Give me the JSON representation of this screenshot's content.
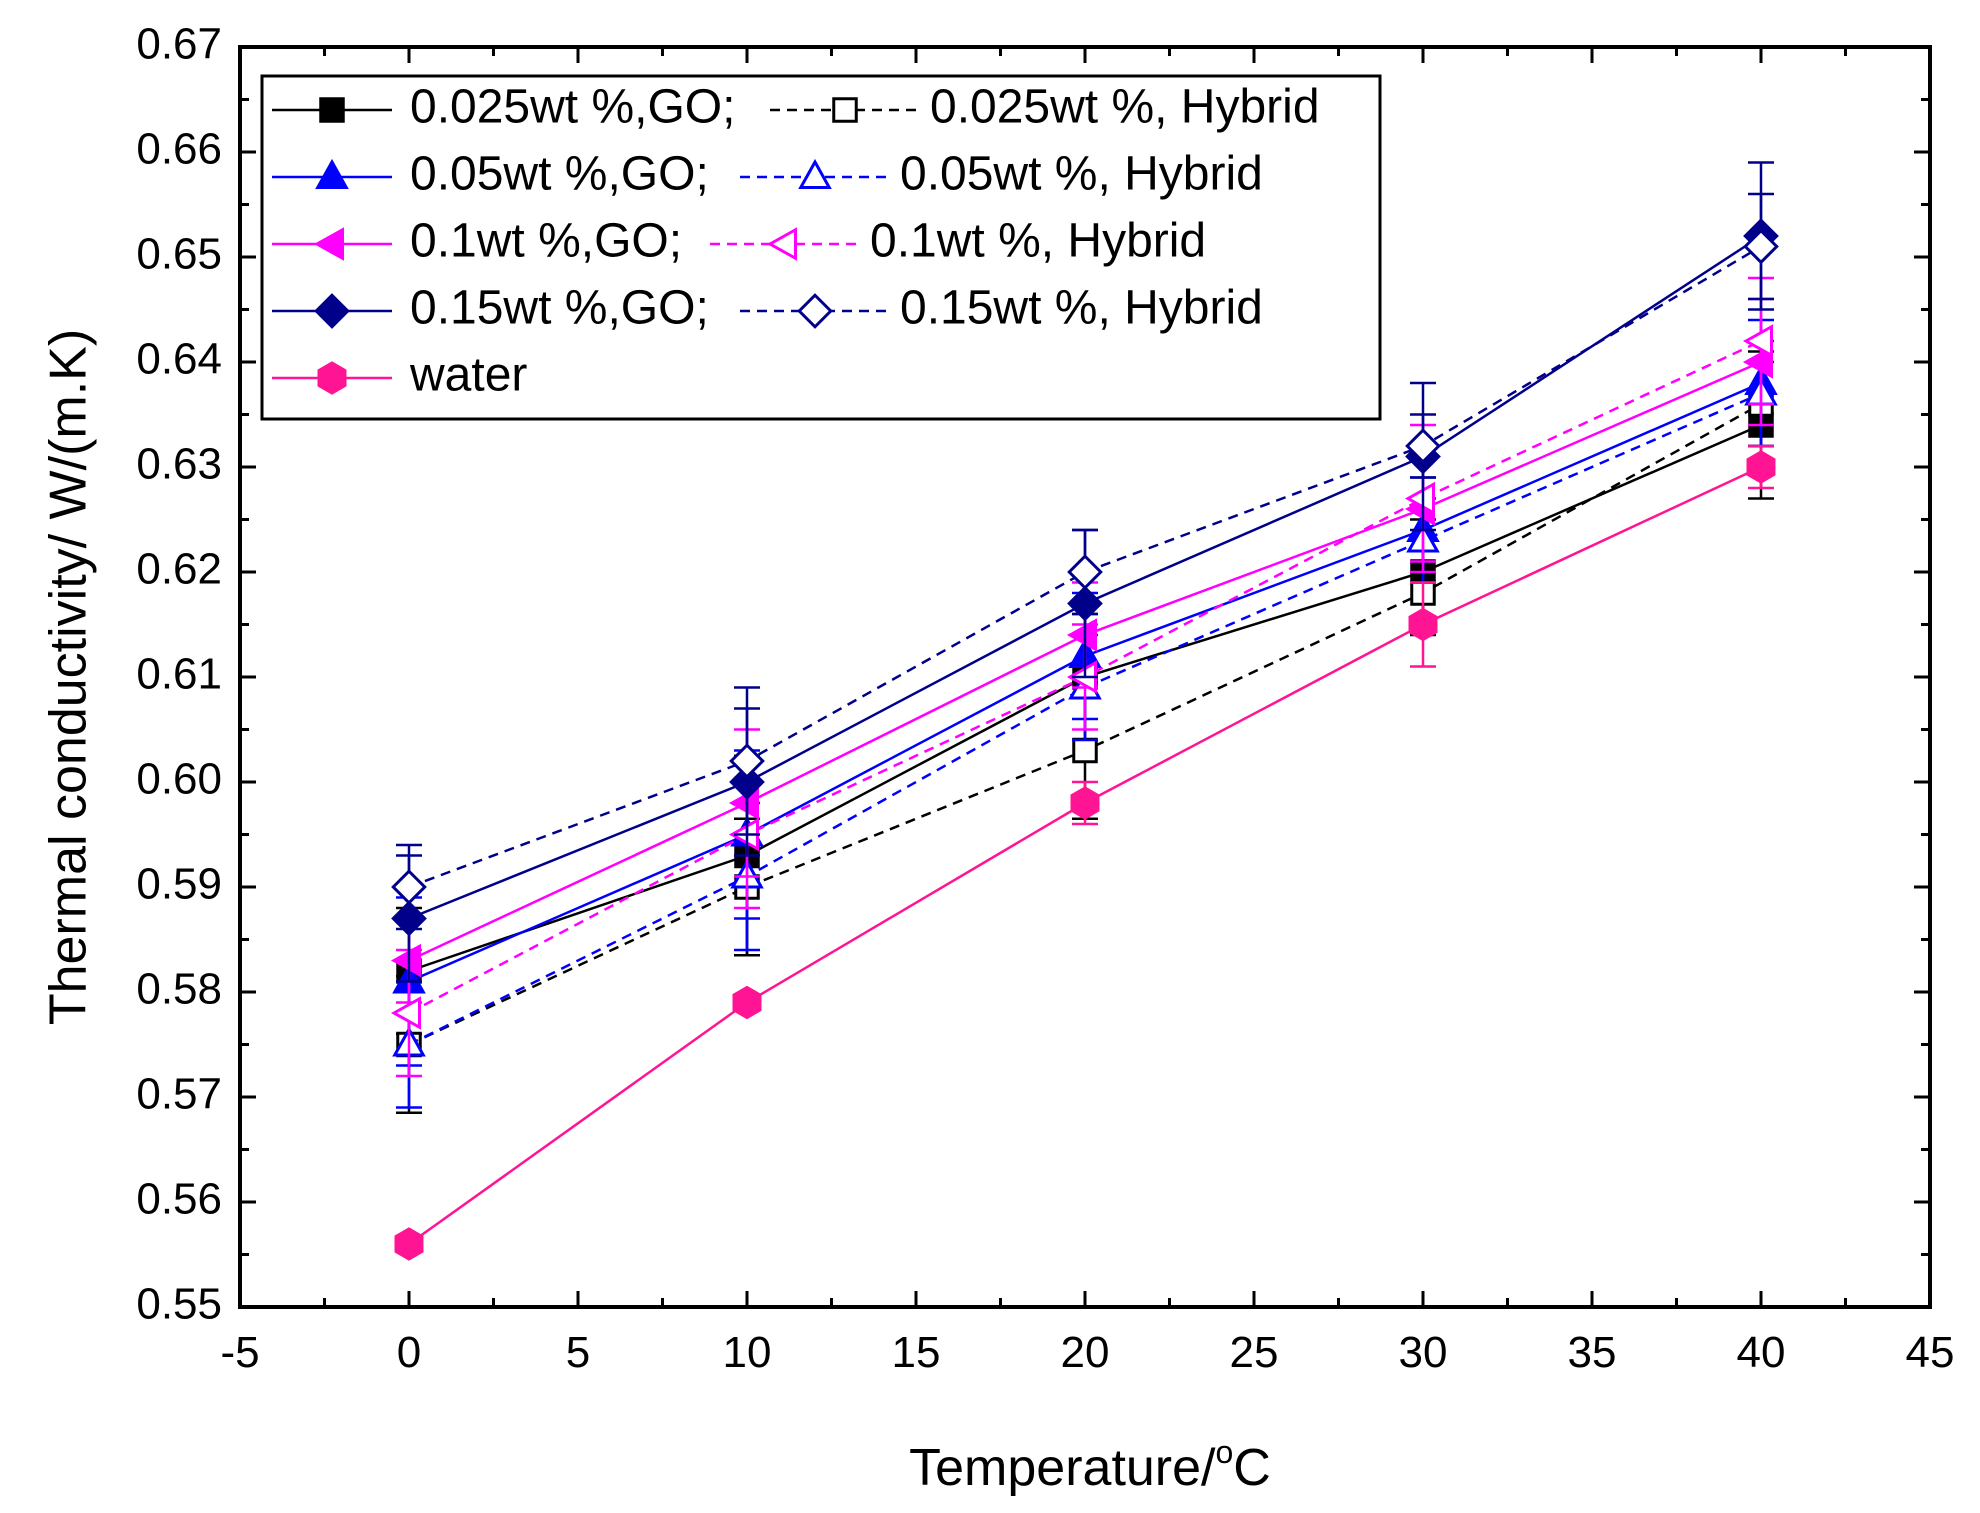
{
  "chart_data": {
    "type": "line",
    "xlabel": "Temperature/",
    "xlabel_sup": "o",
    "xlabel_unit": "C",
    "ylabel": "Thermal conductivity/ W/(m.K)",
    "xlim": [
      -5,
      45
    ],
    "ylim": [
      0.55,
      0.67
    ],
    "xticks": [
      "-5",
      "0",
      "5",
      "10",
      "15",
      "20",
      "25",
      "30",
      "35",
      "40",
      "45"
    ],
    "yticks": [
      "0.55",
      "0.56",
      "0.57",
      "0.58",
      "0.59",
      "0.60",
      "0.61",
      "0.62",
      "0.63",
      "0.64",
      "0.65",
      "0.66",
      "0.67"
    ],
    "x": [
      0,
      10,
      20,
      30,
      40
    ],
    "legend_rows": [
      {
        "left": "0.025wt %,GO;",
        "right": "0.025wt %, Hybrid"
      },
      {
        "left": "0.05wt %,GO;",
        "right": "0.05wt %, Hybrid"
      },
      {
        "left": "0.1wt %,GO;",
        "right": "0.1wt %, Hybrid"
      },
      {
        "left": "0.15wt %,GO;",
        "right": "0.15wt %, Hybrid"
      },
      {
        "left": "water",
        "right": ""
      }
    ],
    "series": [
      {
        "name": "0.025wt %,GO",
        "color": "#000000",
        "marker": "square",
        "filled": true,
        "dash": false,
        "values": [
          0.582,
          0.593,
          0.61,
          0.62,
          0.634
        ],
        "err": [
          0.006,
          0.0095,
          0.006,
          0.005,
          0.007
        ]
      },
      {
        "name": "0.025wt %, Hybrid",
        "color": "#000000",
        "marker": "square",
        "filled": false,
        "dash": true,
        "values": [
          0.575,
          0.59,
          0.603,
          0.618,
          0.636
        ],
        "err": [
          0.0065,
          0.0065,
          0.0065,
          0.004,
          0.004
        ]
      },
      {
        "name": "0.05wt %,GO",
        "color": "#0000FF",
        "marker": "triangle-up",
        "filled": true,
        "dash": false,
        "values": [
          0.581,
          0.595,
          0.612,
          0.624,
          0.638
        ],
        "err": [
          0.008,
          0.008,
          0.006,
          0.005,
          0.006
        ]
      },
      {
        "name": "0.05wt %, Hybrid",
        "color": "#0000FF",
        "marker": "triangle-up",
        "filled": false,
        "dash": true,
        "values": [
          0.575,
          0.591,
          0.609,
          0.623,
          0.637
        ],
        "err": [
          0.006,
          0.007,
          0.005,
          0.004,
          0.005
        ]
      },
      {
        "name": "0.1wt %,GO",
        "color": "#FF00FF",
        "marker": "triangle-left",
        "filled": true,
        "dash": false,
        "values": [
          0.583,
          0.598,
          0.614,
          0.626,
          0.64
        ],
        "err": [
          0.004,
          0.007,
          0.005,
          0.005,
          0.006
        ]
      },
      {
        "name": "0.1wt %, Hybrid",
        "color": "#FF00FF",
        "marker": "triangle-left",
        "filled": false,
        "dash": true,
        "values": [
          0.578,
          0.595,
          0.61,
          0.627,
          0.642
        ],
        "err": [
          0.006,
          0.007,
          0.005,
          0.007,
          0.006
        ]
      },
      {
        "name": "0.15wt %,GO",
        "color": "#00008B",
        "marker": "diamond",
        "filled": true,
        "dash": false,
        "values": [
          0.587,
          0.6,
          0.617,
          0.631,
          0.652
        ],
        "err": [
          0.006,
          0.007,
          0.007,
          0.007,
          0.007
        ]
      },
      {
        "name": "0.15wt %, Hybrid",
        "color": "#00008B",
        "marker": "diamond",
        "filled": false,
        "dash": true,
        "values": [
          0.59,
          0.602,
          0.62,
          0.632,
          0.651
        ],
        "err": [
          0.004,
          0.007,
          0.004,
          0.003,
          0.005
        ]
      },
      {
        "name": "water",
        "color": "#FF1493",
        "marker": "hexagon",
        "filled": true,
        "dash": false,
        "values": [
          0.556,
          0.579,
          0.598,
          0.615,
          0.63
        ],
        "err": [
          0,
          0,
          0.002,
          0.004,
          0.002
        ]
      }
    ]
  }
}
